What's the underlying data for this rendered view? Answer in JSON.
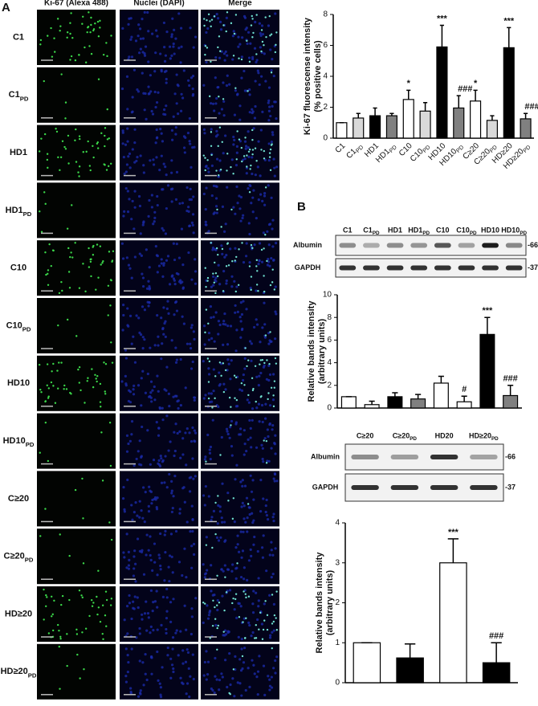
{
  "panel_labels": [
    "A",
    "B"
  ],
  "micrographs": {
    "columns": [
      "Ki-67 (Alexa 488)",
      "Nuclei (DAPI)",
      "Merge"
    ],
    "rows": [
      "C1",
      "C1PD",
      "HD1",
      "HD1PD",
      "C10",
      "C10PD",
      "HD10",
      "HD10PD",
      "C≥20",
      "C≥20PD",
      "HD≥20",
      "HD≥20PD"
    ]
  },
  "blots": [
    {
      "bands": [
        "Albumin",
        "GAPDH"
      ],
      "markers": [
        "-66",
        "-37"
      ]
    },
    {
      "bands": [
        "Albumin",
        "GAPDH"
      ],
      "markers": [
        "-66",
        "-37"
      ]
    }
  ],
  "chart_data": [
    {
      "type": "bar",
      "ylabel": [
        "Ki-67 fluorescense intensity",
        "(% positive cells)"
      ],
      "categories": [
        "C1",
        "C1PD",
        "HD1",
        "HD1PD",
        "C10",
        "C10PD",
        "HD10",
        "HD10PD",
        "C≥20",
        "C≥20PD",
        "HD≥20",
        "HD≥20PD"
      ],
      "values": [
        1.0,
        1.3,
        1.45,
        1.45,
        2.5,
        1.75,
        5.9,
        1.95,
        2.4,
        1.15,
        5.85,
        1.25
      ],
      "errors": [
        0,
        0.3,
        0.5,
        0.15,
        0.6,
        0.55,
        1.4,
        0.8,
        0.7,
        0.3,
        1.3,
        0.35
      ],
      "colors": [
        "#ffffff",
        "#d9d9d9",
        "#000000",
        "#808080",
        "#ffffff",
        "#d9d9d9",
        "#000000",
        "#808080",
        "#ffffff",
        "#d9d9d9",
        "#000000",
        "#808080"
      ],
      "annotations": [
        null,
        null,
        null,
        null,
        "*",
        null,
        "***",
        "###",
        "*",
        null,
        "***",
        "###"
      ],
      "ylim": [
        0,
        8
      ],
      "yticks": [
        0,
        2,
        4,
        6,
        8
      ]
    },
    {
      "type": "bar",
      "ylabel": [
        "Relative bands intensity",
        "(arbitrary units)"
      ],
      "categories": [
        "C1",
        "C1PD",
        "HD1",
        "HD1PD",
        "C10",
        "C10PD",
        "HD10",
        "HD10PD"
      ],
      "values": [
        1.0,
        0.3,
        1.0,
        0.8,
        2.2,
        0.55,
        6.5,
        1.1
      ],
      "errors": [
        0,
        0.3,
        0.35,
        0.4,
        0.6,
        0.5,
        1.5,
        0.9
      ],
      "colors": [
        "#ffffff",
        "#ffffff",
        "#000000",
        "#808080",
        "#ffffff",
        "#ffffff",
        "#000000",
        "#808080"
      ],
      "annotations": [
        null,
        null,
        null,
        null,
        null,
        "#",
        "***",
        "###"
      ],
      "ylim": [
        0,
        10
      ],
      "yticks": [
        0,
        2,
        4,
        6,
        8,
        10
      ]
    },
    {
      "type": "bar",
      "ylabel": [
        "Relative bands intensity",
        "(arbitrary units)"
      ],
      "categories": [
        "C≥20",
        "C≥20PD",
        "HD20",
        "HD≥20PD"
      ],
      "values": [
        1.0,
        0.62,
        3.0,
        0.5
      ],
      "errors": [
        0,
        0.35,
        0.6,
        0.5
      ],
      "colors": [
        "#ffffff",
        "#000000",
        "#ffffff",
        "#000000"
      ],
      "annotations": [
        null,
        null,
        "***",
        "###"
      ],
      "ylim": [
        0,
        4
      ],
      "yticks": [
        0,
        1,
        2,
        3,
        4
      ]
    }
  ]
}
